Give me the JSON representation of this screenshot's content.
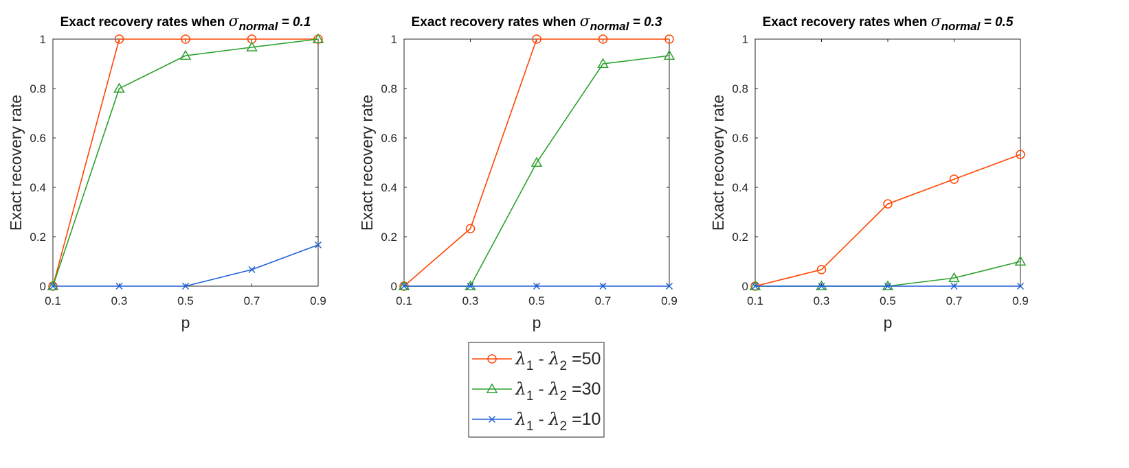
{
  "figure": {
    "legend": {
      "entries": [
        {
          "sym": "λ",
          "s1": "1",
          "mid": " - ",
          "s2": "2",
          "rest": " =50",
          "color": "#ff4500",
          "marker": "circle"
        },
        {
          "sym": "λ",
          "s1": "1",
          "mid": " - ",
          "s2": "2",
          "rest": " =30",
          "color": "#2ca02c",
          "marker": "triangle"
        },
        {
          "sym": "λ",
          "s1": "1",
          "mid": " - ",
          "s2": "2",
          "rest": " =10",
          "color": "#1f5fd6",
          "marker": "x"
        }
      ]
    }
  },
  "chart_data": [
    {
      "type": "line",
      "title": {
        "prefix": "Exact recovery rates when ",
        "sigma": "σ",
        "sub": "normal",
        "suffix": " = 0.1"
      },
      "xlabel": "p",
      "ylabel": "Exact recovery rate",
      "x": [
        0.1,
        0.3,
        0.5,
        0.7,
        0.9
      ],
      "xticks": [
        "0.1",
        "0.3",
        "0.5",
        "0.7",
        "0.9"
      ],
      "yticks": [
        "0",
        "0.2",
        "0.4",
        "0.6",
        "0.8",
        "1"
      ],
      "xlim": [
        0.1,
        0.9
      ],
      "ylim": [
        0,
        1
      ],
      "grid": false,
      "series": [
        {
          "name": "λ1 - λ2 =50",
          "color": "#ff4500",
          "marker": "circle",
          "values": [
            0,
            1,
            1,
            1,
            1
          ]
        },
        {
          "name": "λ1 - λ2 =30",
          "color": "#2ca02c",
          "marker": "triangle",
          "values": [
            0,
            0.8,
            0.933,
            0.967,
            1
          ]
        },
        {
          "name": "λ1 - λ2 =10",
          "color": "#1f5fd6",
          "marker": "x",
          "values": [
            0,
            0,
            0,
            0.067,
            0.167
          ]
        }
      ]
    },
    {
      "type": "line",
      "title": {
        "prefix": "Exact recovery rates when ",
        "sigma": "σ",
        "sub": "normal",
        "suffix": " = 0.3"
      },
      "xlabel": "p",
      "ylabel": "Exact recovery rate",
      "x": [
        0.1,
        0.3,
        0.5,
        0.7,
        0.9
      ],
      "xticks": [
        "0.1",
        "0.3",
        "0.5",
        "0.7",
        "0.9"
      ],
      "yticks": [
        "0",
        "0.2",
        "0.4",
        "0.6",
        "0.8",
        "1"
      ],
      "xlim": [
        0.1,
        0.9
      ],
      "ylim": [
        0,
        1
      ],
      "grid": false,
      "series": [
        {
          "name": "λ1 - λ2 =50",
          "color": "#ff4500",
          "marker": "circle",
          "values": [
            0,
            0.233,
            1,
            1,
            1
          ]
        },
        {
          "name": "λ1 - λ2 =30",
          "color": "#2ca02c",
          "marker": "triangle",
          "values": [
            0,
            0,
            0.5,
            0.9,
            0.933
          ]
        },
        {
          "name": "λ1 - λ2 =10",
          "color": "#1f5fd6",
          "marker": "x",
          "values": [
            0,
            0,
            0,
            0,
            0
          ]
        }
      ]
    },
    {
      "type": "line",
      "title": {
        "prefix": "Exact recovery rates when ",
        "sigma": "σ",
        "sub": "normal",
        "suffix": " = 0.5"
      },
      "xlabel": "p",
      "ylabel": "Exact recovery rate",
      "x": [
        0.1,
        0.3,
        0.5,
        0.7,
        0.9
      ],
      "xticks": [
        "0.1",
        "0.3",
        "0.5",
        "0.7",
        "0.9"
      ],
      "yticks": [
        "0",
        "0.2",
        "0.4",
        "0.6",
        "0.8",
        "1"
      ],
      "xlim": [
        0.1,
        0.9
      ],
      "ylim": [
        0,
        1
      ],
      "grid": false,
      "series": [
        {
          "name": "λ1 - λ2 =50",
          "color": "#ff4500",
          "marker": "circle",
          "values": [
            0,
            0.067,
            0.333,
            0.433,
            0.533
          ]
        },
        {
          "name": "λ1 - λ2 =30",
          "color": "#2ca02c",
          "marker": "triangle",
          "values": [
            0,
            0,
            0,
            0.033,
            0.1
          ]
        },
        {
          "name": "λ1 - λ2 =10",
          "color": "#1f5fd6",
          "marker": "x",
          "values": [
            0,
            0,
            0,
            0,
            0
          ]
        }
      ]
    }
  ]
}
